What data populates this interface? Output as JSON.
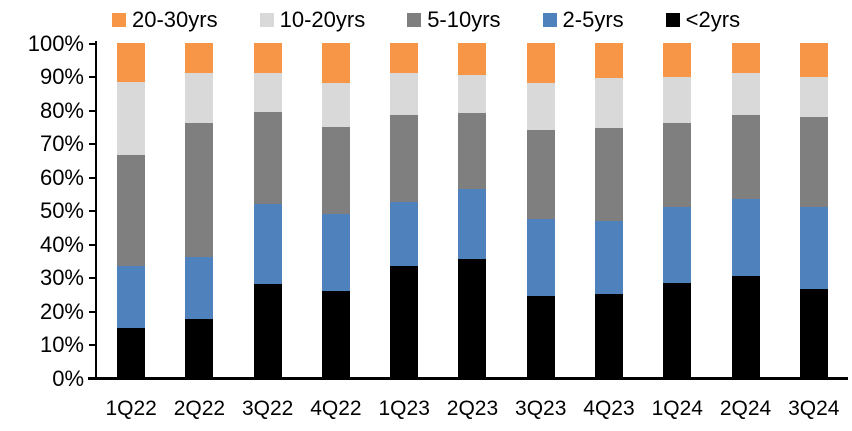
{
  "chart_data": {
    "type": "bar",
    "variant": "stacked-100-percent",
    "title": "",
    "xlabel": "",
    "ylabel": "",
    "categories": [
      "1Q22",
      "2Q22",
      "3Q22",
      "4Q22",
      "1Q23",
      "2Q23",
      "3Q23",
      "4Q23",
      "1Q24",
      "2Q24",
      "3Q24"
    ],
    "series": [
      {
        "name": "<2yrs",
        "color": "#000000",
        "values": [
          15.0,
          17.5,
          28.0,
          26.0,
          33.5,
          35.5,
          24.5,
          25.0,
          28.5,
          30.5,
          26.5
        ]
      },
      {
        "name": "2-5yrs",
        "color": "#4F81BD",
        "values": [
          18.5,
          18.5,
          24.0,
          23.0,
          19.0,
          21.0,
          23.0,
          22.0,
          22.5,
          23.0,
          24.5
        ]
      },
      {
        "name": "5-10yrs",
        "color": "#7F7F7F",
        "values": [
          33.0,
          40.0,
          27.5,
          26.0,
          26.0,
          22.5,
          26.5,
          27.5,
          25.0,
          25.0,
          27.0
        ]
      },
      {
        "name": "10-20yrs",
        "color": "#D9D9D9",
        "values": [
          22.0,
          15.0,
          11.5,
          13.0,
          12.5,
          11.5,
          14.0,
          15.0,
          14.0,
          12.5,
          12.0
        ]
      },
      {
        "name": "20-30yrs",
        "color": "#F79646",
        "values": [
          11.5,
          9.0,
          9.0,
          12.0,
          9.0,
          9.5,
          12.0,
          10.5,
          10.0,
          9.0,
          10.0
        ]
      }
    ],
    "stack_order_bottom_to_top": [
      "<2yrs",
      "2-5yrs",
      "5-10yrs",
      "10-20yrs",
      "20-30yrs"
    ],
    "legend": {
      "position": "top",
      "order_left_to_right": [
        "20-30yrs",
        "10-20yrs",
        "5-10yrs",
        "2-5yrs",
        "<2yrs"
      ]
    },
    "y_axis": {
      "min": 0,
      "max": 100,
      "tick_labels": [
        "0%",
        "10%",
        "20%",
        "30%",
        "40%",
        "50%",
        "60%",
        "70%",
        "80%",
        "90%",
        "100%"
      ],
      "grid": false
    },
    "axis_color": "#000000",
    "background_color": "#FFFFFF"
  }
}
